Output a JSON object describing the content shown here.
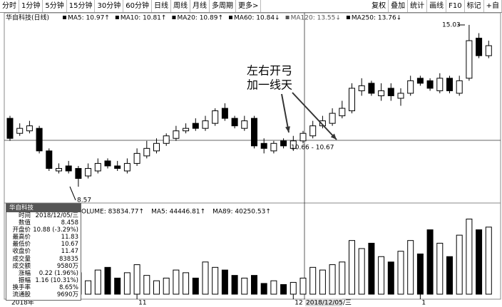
{
  "toolbar": {
    "left": [
      "分时",
      "1分钟",
      "5分钟",
      "15分钟",
      "30分钟",
      "60分钟",
      "日线",
      "周线",
      "月线",
      "多周期",
      "更多>"
    ],
    "right": [
      "复权",
      "叠加",
      "统计",
      "画线",
      "F10",
      "标记",
      "+自"
    ]
  },
  "legend": {
    "title": "华自科技(日线)",
    "items": [
      {
        "label": "MA5: 10.97↑",
        "color": "#000000"
      },
      {
        "label": "MA10: 10.81↑",
        "color": "#000000"
      },
      {
        "label": "MA20: 10.89↑",
        "color": "#000000"
      },
      {
        "label": "MA60: 10.84↓",
        "color": "#000000"
      },
      {
        "label": "MA120: 13.55↓",
        "color": "#555555"
      },
      {
        "label": "MA250: 13.76↓",
        "color": "#000000"
      }
    ]
  },
  "annotation": [
    "左右开弓",
    "加一线天"
  ],
  "price_labels": {
    "high": "15.03",
    "low": "8.57",
    "cross": "10.66 - 10.67"
  },
  "volume_legend": [
    "VOLUME: 83834.77↑",
    "MA5: 44446.81↑",
    "MA89: 40250.53↑"
  ],
  "info_panel": {
    "title": "华自科技",
    "rows": [
      [
        "时间",
        "2018/12/05/三"
      ],
      [
        "数值",
        "8.458"
      ],
      [
        "开盘价",
        "10.88 (-3.29%)"
      ],
      [
        "最高价",
        "11.83"
      ],
      [
        "最低价",
        "10.67"
      ],
      [
        "收盘价",
        "11.47"
      ],
      [
        "成交量",
        "83835"
      ],
      [
        "成交额",
        "9580万"
      ],
      [
        "涨幅",
        "0.22 (1.96%)"
      ],
      [
        "振幅",
        "1.16 (10.31%)"
      ],
      [
        "换手率",
        "8.65%"
      ],
      [
        "流通股",
        "9690万"
      ]
    ]
  },
  "cross_date": "2018/12/05/三",
  "chart_data": {
    "type": "candlestick",
    "open": [
      11.3,
      10.7,
      10.8,
      10.9,
      10.0,
      9.2,
      9.4,
      9.3,
      9.0,
      9.2,
      9.6,
      9.4,
      9.2,
      9.5,
      9.8,
      10.0,
      10.3,
      10.5,
      10.8,
      11.1,
      10.9,
      11.1,
      11.7,
      11.3,
      10.9,
      11.3,
      10.3,
      10.0,
      10.4,
      10.1,
      10.4,
      10.6,
      11.0,
      11.1,
      11.4,
      11.6,
      12.4,
      12.7,
      12.2,
      12.5,
      12.1,
      12.3,
      12.9,
      12.8,
      12.4,
      12.9,
      12.3,
      12.9,
      14.5,
      13.8
    ],
    "high": [
      11.4,
      11.1,
      11.2,
      11.0,
      10.1,
      9.5,
      9.6,
      9.4,
      9.5,
      9.7,
      9.7,
      9.6,
      9.7,
      10.1,
      10.4,
      10.5,
      10.7,
      11.0,
      11.1,
      11.3,
      11.4,
      11.7,
      11.9,
      11.4,
      11.4,
      11.4,
      10.5,
      10.4,
      10.5,
      10.6,
      10.8,
      11.2,
      11.4,
      11.7,
      12.0,
      12.7,
      12.9,
      12.8,
      12.7,
      12.7,
      12.5,
      13.0,
      13.0,
      12.9,
      13.1,
      13.0,
      13.0,
      15.03,
      14.7,
      14.4
    ],
    "low": [
      10.4,
      10.6,
      10.7,
      9.9,
      9.2,
      9.1,
      9.1,
      8.57,
      8.9,
      9.1,
      9.3,
      9.2,
      9.1,
      9.4,
      9.7,
      9.9,
      10.2,
      10.4,
      10.7,
      10.8,
      10.8,
      11.0,
      11.2,
      10.9,
      10.8,
      10.1,
      9.9,
      9.9,
      10.1,
      10.0,
      10.3,
      10.5,
      10.9,
      11.0,
      11.3,
      11.5,
      12.2,
      12.2,
      12.0,
      12.0,
      11.8,
      12.2,
      12.6,
      12.4,
      12.3,
      12.3,
      12.2,
      12.8,
      13.7,
      13.7
    ],
    "close": [
      10.5,
      10.9,
      11.0,
      10.0,
      9.3,
      9.3,
      9.2,
      8.9,
      9.3,
      9.5,
      9.4,
      9.3,
      9.5,
      9.9,
      10.1,
      10.3,
      10.6,
      10.8,
      10.9,
      10.9,
      11.2,
      11.6,
      11.3,
      11.0,
      11.2,
      10.2,
      10.1,
      10.3,
      10.2,
      10.4,
      10.7,
      11.0,
      11.2,
      11.5,
      11.7,
      12.5,
      12.6,
      12.3,
      12.4,
      12.2,
      12.3,
      12.8,
      12.7,
      12.5,
      12.9,
      12.4,
      12.8,
      14.4,
      13.8,
      14.2
    ],
    "volume": [
      30000,
      45000,
      35000,
      50000,
      20000,
      18000,
      20000,
      40000,
      25000,
      45000,
      50000,
      30000,
      40000,
      55000,
      35000,
      25000,
      30000,
      45000,
      40000,
      30000,
      60000,
      50000,
      45000,
      35000,
      30000,
      35000,
      20000,
      25000,
      18000,
      22000,
      30000,
      50000,
      45000,
      55000,
      60000,
      100000,
      85000,
      95000,
      70000,
      60000,
      80000,
      100000,
      75000,
      120000,
      95000,
      70000,
      110000,
      140000,
      120000,
      125000
    ],
    "ylim": [
      7.92,
      15.17
    ],
    "volume_ylim": [
      0,
      150000
    ],
    "xticks": [
      {
        "value": 0,
        "label": "2018年"
      },
      {
        "value": 13,
        "label": "11"
      },
      {
        "value": 29,
        "label": "12"
      },
      {
        "value": 42,
        "label": "1"
      }
    ],
    "up_color": "#ffffff",
    "down_color": "#000000"
  }
}
